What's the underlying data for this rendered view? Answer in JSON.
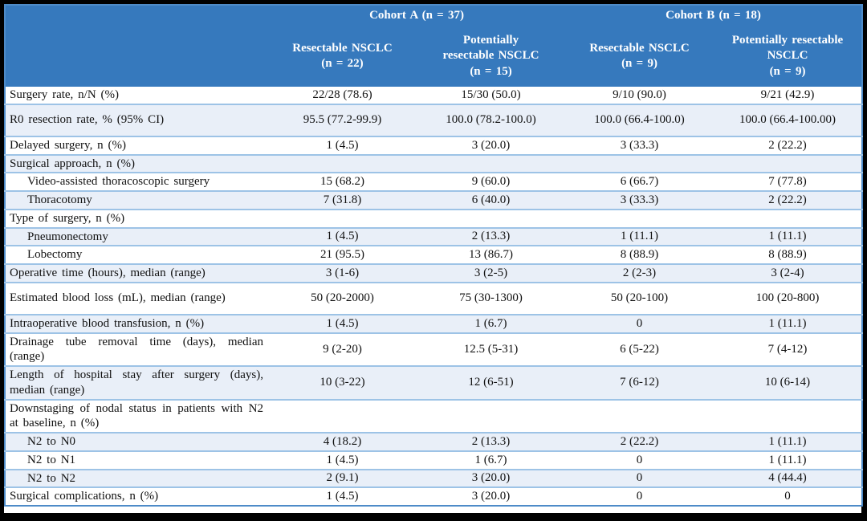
{
  "colors": {
    "header_bg": "#3679bd",
    "header_text": "#ffffff",
    "band_row_bg": "#e9eff8",
    "row_separator": "#9dc3e6",
    "outer_border": "#4e8bc8",
    "page_frame": "#000000",
    "body_text": "#111111"
  },
  "table": {
    "cohorts": [
      {
        "label": "Cohort A (n = 37)"
      },
      {
        "label": "Cohort B (n = 18)"
      }
    ],
    "subgroups": [
      {
        "lines": [
          "Resectable NSCLC",
          "(n = 22)"
        ]
      },
      {
        "lines": [
          "Potentially",
          "resectable NSCLC",
          "(n = 15)"
        ]
      },
      {
        "lines": [
          "Resectable NSCLC",
          "(n = 9)"
        ]
      },
      {
        "lines": [
          "Potentially resectable",
          "NSCLC",
          "(n = 9)"
        ]
      }
    ],
    "rows": [
      {
        "label": "Surgery rate, n/N (%)",
        "indent": false,
        "shaded": false,
        "tall": false,
        "values": [
          "22/28 (78.6)",
          "15/30 (50.0)",
          "9/10 (90.0)",
          "9/21 (42.9)"
        ]
      },
      {
        "label": "R0 resection rate, % (95% CI)",
        "indent": false,
        "shaded": true,
        "tall": true,
        "values": [
          "95.5 (77.2-99.9)",
          "100.0 (78.2-100.0)",
          "100.0 (66.4-100.0)",
          "100.0 (66.4-100.00)"
        ]
      },
      {
        "label": "Delayed surgery, n (%)",
        "indent": false,
        "shaded": false,
        "tall": false,
        "values": [
          "1 (4.5)",
          "3 (20.0)",
          "3 (33.3)",
          "2 (22.2)"
        ]
      },
      {
        "label": "Surgical approach, n (%)",
        "indent": false,
        "shaded": true,
        "tall": false,
        "values": [
          "",
          "",
          "",
          ""
        ]
      },
      {
        "label": "Video-assisted thoracoscopic surgery",
        "indent": true,
        "shaded": false,
        "tall": false,
        "values": [
          "15 (68.2)",
          "9 (60.0)",
          "6 (66.7)",
          "7 (77.8)"
        ]
      },
      {
        "label": "Thoracotomy",
        "indent": true,
        "shaded": true,
        "tall": false,
        "values": [
          "7 (31.8)",
          "6 (40.0)",
          "3 (33.3)",
          "2 (22.2)"
        ]
      },
      {
        "label": "Type of surgery, n (%)",
        "indent": false,
        "shaded": false,
        "tall": false,
        "values": [
          "",
          "",
          "",
          ""
        ]
      },
      {
        "label": "Pneumonectomy",
        "indent": true,
        "shaded": true,
        "tall": false,
        "values": [
          "1 (4.5)",
          "2 (13.3)",
          "1 (11.1)",
          "1 (11.1)"
        ]
      },
      {
        "label": "Lobectomy",
        "indent": true,
        "shaded": false,
        "tall": false,
        "values": [
          "21 (95.5)",
          "13 (86.7)",
          "8 (88.9)",
          "8 (88.9)"
        ]
      },
      {
        "label": "Operative time (hours), median (range)",
        "indent": false,
        "shaded": true,
        "tall": false,
        "values": [
          "3 (1-6)",
          "3 (2-5)",
          "2 (2-3)",
          "3 (2-4)"
        ]
      },
      {
        "label": "Estimated blood loss (mL), median (range)",
        "indent": false,
        "shaded": false,
        "tall": true,
        "values": [
          "50 (20-2000)",
          "75 (30-1300)",
          "50 (20-100)",
          "100 (20-800)"
        ]
      },
      {
        "label": "Intraoperative blood transfusion, n (%)",
        "indent": false,
        "shaded": true,
        "tall": false,
        "values": [
          "1 (4.5)",
          "1 (6.7)",
          "0",
          "1 (11.1)"
        ]
      },
      {
        "label": "Drainage tube removal time (days), median (range)",
        "indent": false,
        "shaded": false,
        "tall": false,
        "values": [
          "9 (2-20)",
          "12.5 (5-31)",
          "6 (5-22)",
          "7 (4-12)"
        ]
      },
      {
        "label": "Length of hospital stay after surgery (days), median (range)",
        "indent": false,
        "shaded": true,
        "tall": false,
        "values": [
          "10 (3-22)",
          "12 (6-51)",
          "7 (6-12)",
          "10 (6-14)"
        ]
      },
      {
        "label": "Downstaging of nodal status in patients with N2 at baseline, n (%)",
        "indent": false,
        "shaded": false,
        "tall": false,
        "values": [
          "",
          "",
          "",
          ""
        ]
      },
      {
        "label": "N2 to N0",
        "indent": true,
        "shaded": true,
        "tall": false,
        "values": [
          "4 (18.2)",
          "2 (13.3)",
          "2 (22.2)",
          "1 (11.1)"
        ]
      },
      {
        "label": "N2 to N1",
        "indent": true,
        "shaded": false,
        "tall": false,
        "values": [
          "1 (4.5)",
          "1 (6.7)",
          "0",
          "1 (11.1)"
        ]
      },
      {
        "label": "N2 to N2",
        "indent": true,
        "shaded": true,
        "tall": false,
        "values": [
          "2 (9.1)",
          "3 (20.0)",
          "0",
          "4 (44.4)"
        ]
      },
      {
        "label": "Surgical complications, n (%)",
        "indent": false,
        "shaded": false,
        "tall": false,
        "values": [
          "1 (4.5)",
          "3 (20.0)",
          "0",
          "0"
        ]
      }
    ]
  }
}
